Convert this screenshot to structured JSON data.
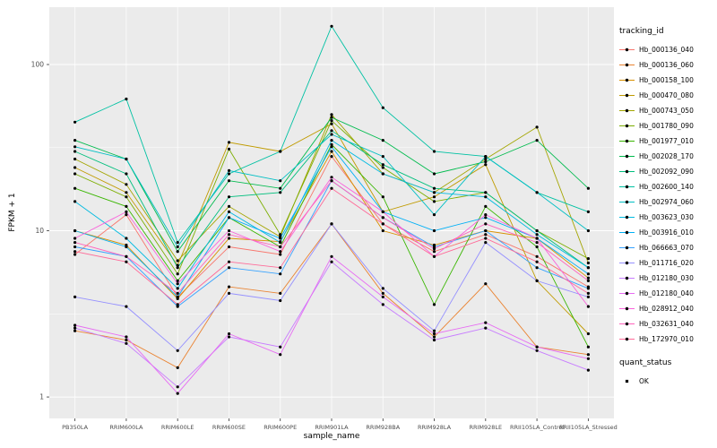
{
  "chart_data": {
    "type": "line",
    "title": "",
    "xlabel": "sample_name",
    "ylabel": "FPKM + 1",
    "x_categories": [
      "PB350LA",
      "RRIM600LA",
      "RRIM600LE",
      "RRIM600SE",
      "RRIM600PE",
      "RRIM901LA",
      "RRIM928BA",
      "RRIM928LA",
      "RRIM928LE",
      "RRII105LA_Control",
      "RRII105LA_Stressed"
    ],
    "y_scale": "log10",
    "y_ticks": [
      1,
      10,
      100
    ],
    "y_minor_ticks": [
      3.162,
      31.62
    ],
    "ylim_log10": [
      -0.129,
      2.345
    ],
    "panel_color": "#EBEBEB",
    "grid_color": "#FFFFFF",
    "point_color": "#000000",
    "tick_label_color": "#4D4D4D",
    "legend_title": "tracking_id",
    "quant_legend": {
      "title": "quant_status",
      "items": [
        {
          "label": "OK"
        }
      ]
    },
    "series": [
      {
        "name": "Hb_000136_040",
        "color": "#F8766D",
        "values": [
          7.2,
          12.5,
          4.0,
          8.0,
          7.2,
          28,
          11,
          7.5,
          9.5,
          7.0,
          4.6
        ]
      },
      {
        "name": "Hb_000136_060",
        "color": "#EA8331",
        "values": [
          2.5,
          2.2,
          1.5,
          4.6,
          4.2,
          11,
          4.2,
          2.3,
          4.8,
          2.0,
          1.8
        ]
      },
      {
        "name": "Hb_000158_100",
        "color": "#D89000",
        "values": [
          10,
          8.2,
          3.9,
          9.0,
          8.6,
          30,
          10,
          8.2,
          10,
          9.0,
          5.2
        ]
      },
      {
        "name": "Hb_000470_080",
        "color": "#C09B00",
        "values": [
          24,
          17,
          6.2,
          34,
          30,
          44,
          13,
          16,
          25,
          5.0,
          2.4
        ]
      },
      {
        "name": "Hb_000743_050",
        "color": "#A3A500",
        "values": [
          27,
          19,
          6.6,
          14,
          9.2,
          50,
          22,
          17,
          27,
          42,
          6.4
        ]
      },
      {
        "name": "Hb_001780_090",
        "color": "#7CAE00",
        "values": [
          22,
          16,
          5.5,
          31,
          9.5,
          46,
          24,
          15,
          17,
          10,
          6.8
        ]
      },
      {
        "name": "Hb_001977_010",
        "color": "#39B600",
        "values": [
          18,
          14,
          5.0,
          12,
          8.0,
          33,
          16,
          3.6,
          14,
          8.0,
          2.0
        ]
      },
      {
        "name": "Hb_002028_170",
        "color": "#00BB4E",
        "values": [
          35,
          27,
          7.5,
          20,
          18,
          48,
          35,
          22,
          26,
          35,
          18
        ]
      },
      {
        "name": "Hb_002092_090",
        "color": "#00BF7D",
        "values": [
          30,
          22,
          6.0,
          16,
          17,
          40,
          25,
          18,
          17,
          10,
          6.0
        ]
      },
      {
        "name": "Hb_002600_140",
        "color": "#00C1A3",
        "values": [
          45,
          62,
          8.5,
          22,
          30,
          170,
          55,
          30,
          28,
          17,
          13
        ]
      },
      {
        "name": "Hb_002974_060",
        "color": "#00BFC4",
        "values": [
          32,
          27,
          8.0,
          23,
          20,
          38,
          28,
          12.5,
          28,
          17,
          10
        ]
      },
      {
        "name": "Hb_003623_030",
        "color": "#00BAE0",
        "values": [
          15,
          9.0,
          4.5,
          13,
          8.5,
          35,
          22,
          17,
          16,
          9.5,
          6.0
        ]
      },
      {
        "name": "Hb_003916_010",
        "color": "#00B0F6",
        "values": [
          10,
          8.0,
          4.0,
          12,
          9.0,
          32,
          13,
          10,
          12,
          9.0,
          5.5
        ]
      },
      {
        "name": "Hb_066663_070",
        "color": "#35A2FF",
        "values": [
          8.0,
          7.0,
          3.5,
          6.0,
          5.5,
          20,
          12,
          8.0,
          10,
          6.0,
          4.5
        ]
      },
      {
        "name": "Hb_011716_020",
        "color": "#9590FF",
        "values": [
          4.0,
          3.5,
          1.9,
          4.2,
          3.8,
          11,
          4.5,
          2.5,
          8.5,
          5.0,
          4.0
        ]
      },
      {
        "name": "Hb_012180_030",
        "color": "#C77CFF",
        "values": [
          2.6,
          2.1,
          1.15,
          2.3,
          2.0,
          6.5,
          3.6,
          2.2,
          2.6,
          1.9,
          1.45
        ]
      },
      {
        "name": "Hb_012180_040",
        "color": "#E76BF3",
        "values": [
          2.7,
          2.3,
          1.05,
          2.4,
          1.8,
          7.0,
          4.0,
          2.4,
          2.8,
          2.0,
          1.7
        ]
      },
      {
        "name": "Hb_028912_040",
        "color": "#FA62DB",
        "values": [
          9.0,
          13,
          4.8,
          10,
          7.5,
          21,
          13,
          7.0,
          12.5,
          9.0,
          3.5
        ]
      },
      {
        "name": "Hb_032631_040",
        "color": "#FF62BC",
        "values": [
          8.5,
          7.0,
          4.2,
          9.5,
          8.0,
          20,
          12,
          7.8,
          11,
          8.5,
          5.0
        ]
      },
      {
        "name": "Hb_172970_010",
        "color": "#FF6A98",
        "values": [
          7.5,
          6.5,
          3.6,
          6.5,
          6.0,
          18,
          11,
          7.0,
          9.0,
          6.5,
          4.2
        ]
      }
    ]
  }
}
